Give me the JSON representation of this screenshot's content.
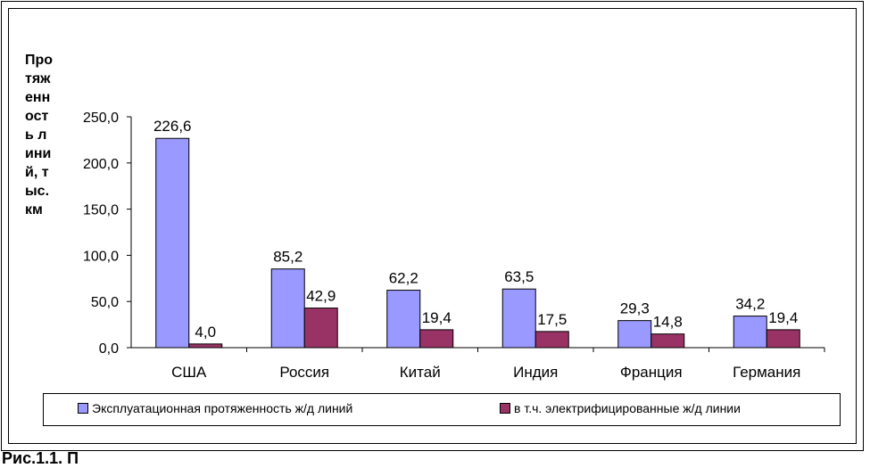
{
  "chart_data": {
    "type": "bar",
    "ylabel": "Протяженность линий, тыс.км",
    "categories": [
      "США",
      "Россия",
      "Китай",
      "Индия",
      "Франция",
      "Германия"
    ],
    "series": [
      {
        "name": "Эксплуатационная протяженность ж/д линий",
        "color": "#9999ff",
        "values": [
          226.6,
          85.2,
          62.2,
          63.5,
          29.3,
          34.2
        ],
        "labels": [
          "226,6",
          "85,2",
          "62,2",
          "63,5",
          "29,3",
          "34,2"
        ]
      },
      {
        "name": "в т.ч. электрифицированные ж/д линии",
        "color": "#993366",
        "values": [
          4.0,
          42.9,
          19.4,
          17.5,
          14.8,
          19.4
        ],
        "labels": [
          "4,0",
          "42,9",
          "19,4",
          "17,5",
          "14,8",
          "19,4"
        ]
      }
    ],
    "ylim": [
      0,
      250
    ],
    "yticks": [
      0,
      50,
      100,
      150,
      200,
      250
    ],
    "ytick_labels": [
      "0,0",
      "50,0",
      "100,0",
      "150,0",
      "200,0",
      "250,0"
    ],
    "grid": false,
    "legend_position": "bottom"
  },
  "caption": "Рис.1.1. П"
}
